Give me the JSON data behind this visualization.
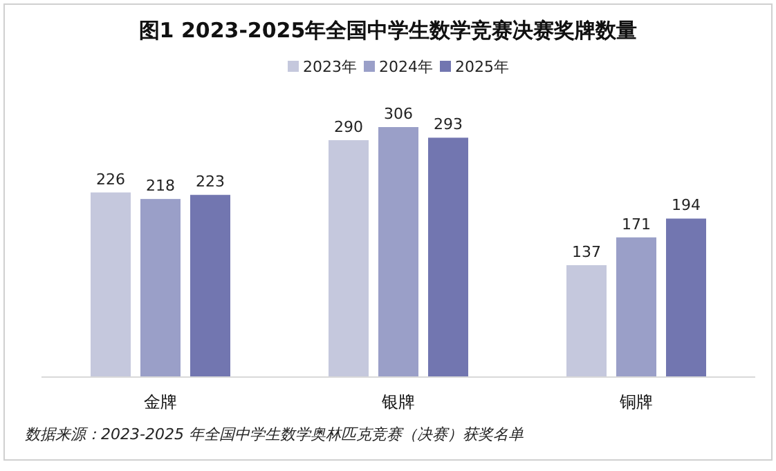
{
  "chart_data": {
    "type": "bar",
    "title": "图1 2023-2025年全国中学生数学竞赛决赛奖牌数量",
    "categories": [
      "金牌",
      "银牌",
      "铜牌"
    ],
    "series": [
      {
        "name": "2023年",
        "color": "#c5c8dd",
        "values": [
          226,
          290,
          137
        ]
      },
      {
        "name": "2024年",
        "color": "#9a9fc8",
        "values": [
          218,
          306,
          171
        ]
      },
      {
        "name": "2025年",
        "color": "#7276b0",
        "values": [
          223,
          293,
          194
        ]
      }
    ],
    "data_labels": true,
    "legend": "top",
    "annotations": [
      "数据来源：2023-2025 年全国中学生数学奥林匹克竞赛（决赛）获奖名单"
    ]
  }
}
